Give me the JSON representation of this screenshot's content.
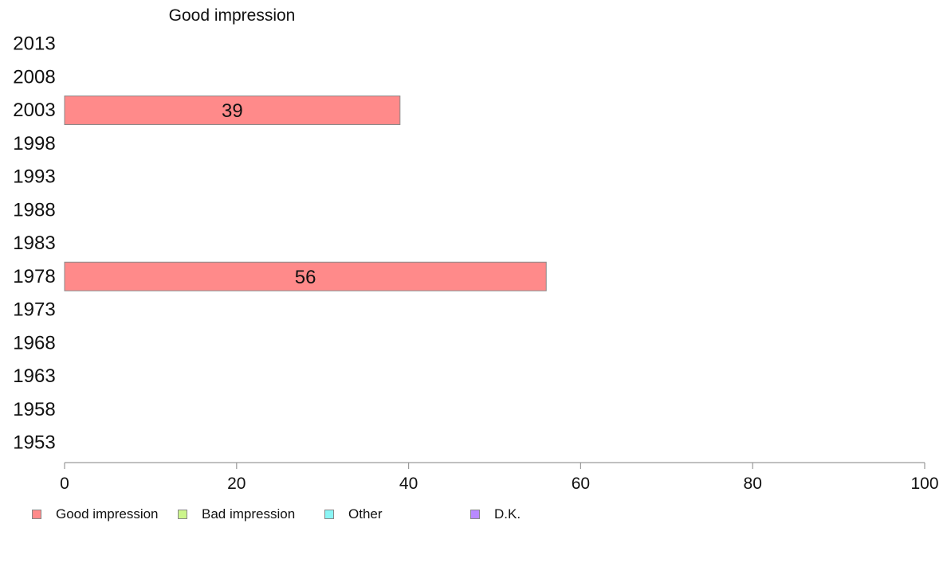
{
  "chart_data": {
    "type": "bar",
    "orientation": "horizontal",
    "title": "Good impression",
    "categories": [
      "2013",
      "2008",
      "2003",
      "1998",
      "1993",
      "1988",
      "1983",
      "1978",
      "1973",
      "1968",
      "1963",
      "1958",
      "1953"
    ],
    "series": [
      {
        "name": "Good impression",
        "color": "#ff8a8a",
        "values": [
          null,
          null,
          39,
          null,
          null,
          null,
          null,
          56,
          null,
          null,
          null,
          null,
          null
        ]
      },
      {
        "name": "Bad impression",
        "color": "#ccf58c",
        "values": [
          null,
          null,
          null,
          null,
          null,
          null,
          null,
          null,
          null,
          null,
          null,
          null,
          null
        ]
      },
      {
        "name": "Other",
        "color": "#8af5f5",
        "values": [
          null,
          null,
          null,
          null,
          null,
          null,
          null,
          null,
          null,
          null,
          null,
          null,
          null
        ]
      },
      {
        "name": "D.K.",
        "color": "#b98aff",
        "values": [
          null,
          null,
          null,
          null,
          null,
          null,
          null,
          null,
          null,
          null,
          null,
          null,
          null
        ]
      }
    ],
    "xlim": [
      0,
      100
    ],
    "xticks": [
      0,
      20,
      40,
      60,
      80,
      100
    ],
    "xlabel": "",
    "ylabel": "",
    "grid": false,
    "legend_position": "bottom"
  }
}
